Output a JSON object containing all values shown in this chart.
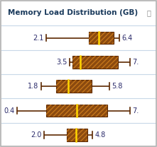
{
  "title": "Memory Load Distribution (GB)",
  "info_symbol": "ⓘ",
  "rows": [
    {
      "min": 2.1,
      "q1": 4.6,
      "median": 5.2,
      "q3": 6.05,
      "max": 6.4,
      "left_label": "2.1",
      "right_label": "6.4",
      "bg": "#e8f4fb"
    },
    {
      "min": 3.5,
      "q1": 3.65,
      "median": 4.1,
      "q3": 6.3,
      "max": 7.0,
      "left_label": "3.5",
      "right_label": "7.",
      "bg": "#ffffff"
    },
    {
      "min": 1.8,
      "q1": 2.7,
      "median": 3.4,
      "q3": 4.75,
      "max": 5.8,
      "left_label": "1.8",
      "right_label": "5.8",
      "bg": "#ffffff"
    },
    {
      "min": 0.4,
      "q1": 2.1,
      "median": 3.9,
      "q3": 5.7,
      "max": 7.0,
      "left_label": "0.4",
      "right_label": "7.",
      "bg": "#ffffff"
    },
    {
      "min": 2.0,
      "q1": 3.3,
      "median": 3.85,
      "q3": 4.5,
      "max": 4.8,
      "left_label": "2.0",
      "right_label": "4.8",
      "bg": "#ffffff"
    }
  ],
  "xmin": -0.5,
  "xmax": 8.5,
  "box_facecolor": "#8B4A0F",
  "hatch_color": "#C4751A",
  "median_color": "#FFD700",
  "whisker_color": "#5C2800",
  "border_color": "#b0b0b0",
  "separator_color": "#c8d8e8",
  "title_color": "#1a3a5c",
  "label_color": "#2a2a6a",
  "title_fontsize": 7.5,
  "label_fontsize": 7.0,
  "info_fontsize": 7.0
}
